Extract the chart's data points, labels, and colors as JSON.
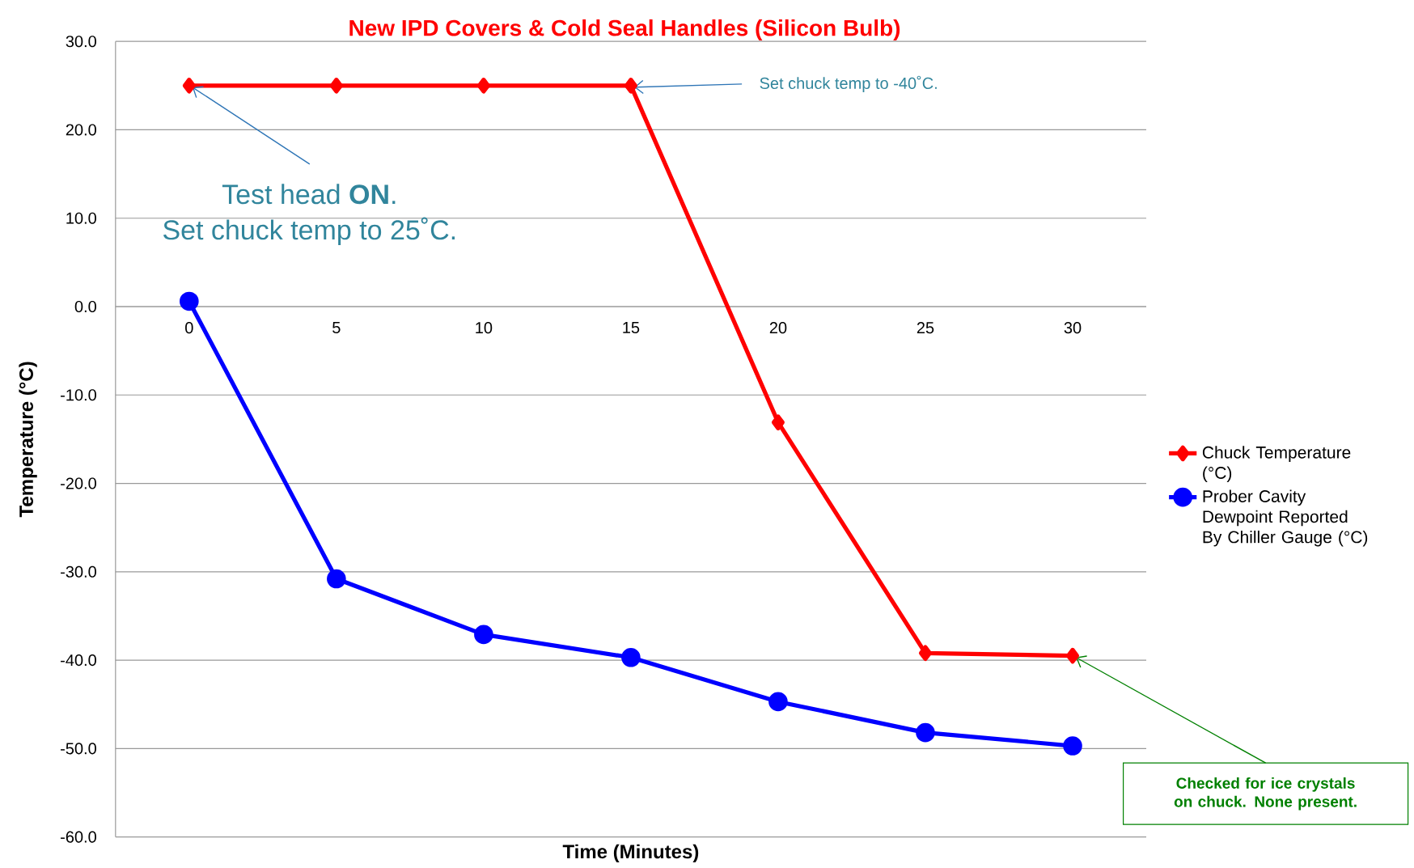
{
  "chart_data": {
    "type": "line",
    "subtitle": "New IPD Covers & Cold Seal Handles (Silicon Bulb)",
    "xlabel": "Time (Minutes)",
    "ylabel": "Temperature (°C)",
    "x": [
      0,
      5,
      10,
      15,
      20,
      25,
      30
    ],
    "series": [
      {
        "name": "Chuck Temperature (°C)",
        "color": "#ff0000",
        "marker": "diamond",
        "values": [
          25,
          25,
          25,
          25,
          -13.1,
          -39.2,
          -39.5
        ]
      },
      {
        "name": "Prober Cavity Dewpoint Reported By Chiller Gauge (°C)",
        "color": "#0000ff",
        "marker": "circle",
        "values": [
          0.6,
          -30.8,
          -37.1,
          -39.7,
          -44.7,
          -48.2,
          -49.7
        ]
      }
    ],
    "xlim": [
      -2.5,
      32.5
    ],
    "ylim": [
      -60,
      30
    ],
    "xticks": [
      0,
      5,
      10,
      15,
      20,
      25,
      30
    ],
    "yticks": [
      {
        "value": -60,
        "label": "-60.0"
      },
      {
        "value": -50,
        "label": "-50.0"
      },
      {
        "value": -40,
        "label": "-40.0"
      },
      {
        "value": -30,
        "label": "-30.0"
      },
      {
        "value": -20,
        "label": "-20.0"
      },
      {
        "value": -10,
        "label": "-10.0"
      },
      {
        "value": 0,
        "label": "0.0"
      },
      {
        "value": 10,
        "label": "10.0"
      },
      {
        "value": 20,
        "label": "20.0"
      },
      {
        "value": 30,
        "label": "30.0"
      }
    ],
    "grid": "y",
    "legend": "right",
    "line_style": "solid",
    "annotations": [
      {
        "text": "Test head **ON**.",
        "x": 0,
        "y": 25
      },
      "Set chuck temp to 25˚C.",
      {
        "text": "Set chuck temp to -40˚C.",
        "x": 15,
        "y": 25
      },
      {
        "text": "Checked for ice crystals on chuck. None present.",
        "x": 30,
        "y": -39.5
      }
    ]
  }
}
